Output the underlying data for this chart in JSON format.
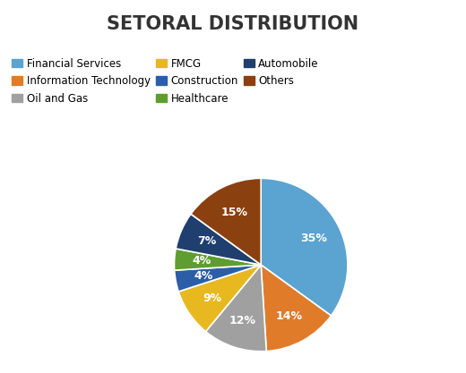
{
  "title": "SETORAL DISTRIBUTION",
  "labels": [
    "Financial Services",
    "Information Technology",
    "Oil and Gas",
    "FMCG",
    "Construction",
    "Healthcare",
    "Automobile",
    "Others"
  ],
  "values": [
    35,
    14,
    12,
    9,
    4,
    4,
    7,
    15
  ],
  "colors": [
    "#5BA3D0",
    "#E07B2A",
    "#A0A0A0",
    "#E8B820",
    "#2B5EA7",
    "#5E9E30",
    "#1F3F6E",
    "#8B4010"
  ],
  "title_fontsize": 15,
  "label_fontsize": 9,
  "legend_fontsize": 8.5,
  "background_color": "#FFFFFF",
  "startangle": 90,
  "legend_row1": [
    "Financial Services",
    "Information Technology",
    "Oil and Gas"
  ],
  "legend_row2": [
    "FMCG",
    "Construction",
    "Healthcare"
  ],
  "legend_row3": [
    "Automobile",
    "Others"
  ]
}
